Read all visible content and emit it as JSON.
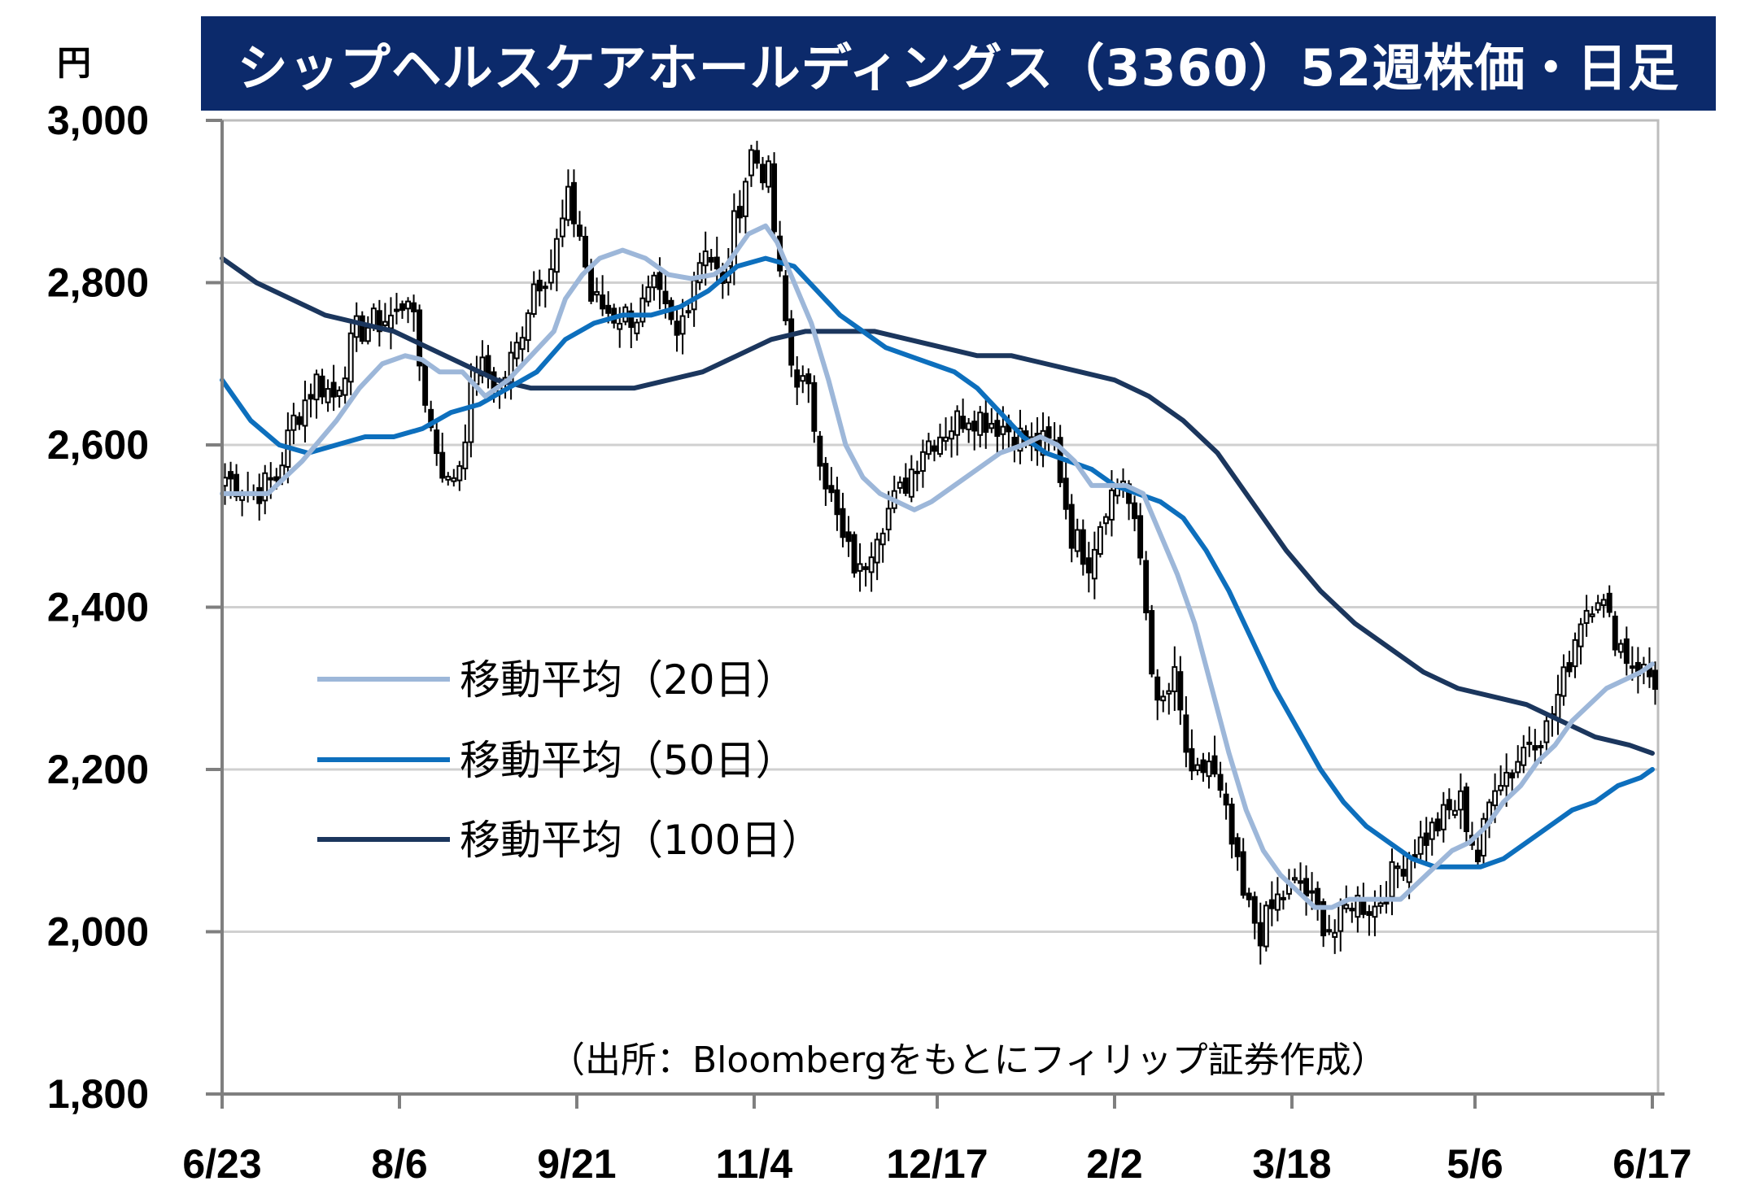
{
  "title": "シップヘルスケアホールディングス（3360）52週株価・日足",
  "unit": "円",
  "source": "（出所：Bloombergをもとにフィリップ証券作成）",
  "colors": {
    "title_bg": "#0c2a6b",
    "ma20": "#9db7d9",
    "ma50": "#0d6fbd",
    "ma100": "#1b365d",
    "candle": "#000000",
    "grid": "#d0d0d0"
  },
  "chart_data": {
    "type": "candlestick",
    "title": "シップヘルスケアホールディングス（3360）52週株価・日足",
    "ylabel": "円",
    "ylim": [
      1800,
      3000
    ],
    "yticks": [
      1800,
      2000,
      2200,
      2400,
      2600,
      2800,
      3000
    ],
    "ytick_labels": [
      "1,800",
      "2,000",
      "2,200",
      "2,400",
      "2,600",
      "2,800",
      "3,000"
    ],
    "xlim": [
      0,
      251
    ],
    "xticks": [
      {
        "label": "6/23",
        "x": 0
      },
      {
        "label": "8/6",
        "x": 31
      },
      {
        "label": "9/21",
        "x": 62
      },
      {
        "label": "11/4",
        "x": 93
      },
      {
        "label": "12/17",
        "x": 125
      },
      {
        "label": "2/2",
        "x": 156
      },
      {
        "label": "3/18",
        "x": 187
      },
      {
        "label": "5/6",
        "x": 219
      },
      {
        "label": "6/17",
        "x": 250
      }
    ],
    "legend": [
      "移動平均（20日）",
      "移動平均（50日）",
      "移動平均（100日）"
    ],
    "close_anchors": [
      [
        0,
        2560
      ],
      [
        5,
        2540
      ],
      [
        9,
        2560
      ],
      [
        12,
        2630
      ],
      [
        16,
        2680
      ],
      [
        19,
        2660
      ],
      [
        23,
        2740
      ],
      [
        26,
        2750
      ],
      [
        30,
        2760
      ],
      [
        32,
        2790
      ],
      [
        34,
        2700
      ],
      [
        36,
        2620
      ],
      [
        39,
        2550
      ],
      [
        41,
        2580
      ],
      [
        44,
        2700
      ],
      [
        48,
        2670
      ],
      [
        51,
        2720
      ],
      [
        54,
        2800
      ],
      [
        57,
        2820
      ],
      [
        60,
        2900
      ],
      [
        62,
        2860
      ],
      [
        64,
        2780
      ],
      [
        68,
        2760
      ],
      [
        72,
        2760
      ],
      [
        75,
        2790
      ],
      [
        79,
        2730
      ],
      [
        82,
        2810
      ],
      [
        84,
        2850
      ],
      [
        87,
        2790
      ],
      [
        89,
        2870
      ],
      [
        92,
        2960
      ],
      [
        95,
        2930
      ],
      [
        97,
        2800
      ],
      [
        99,
        2700
      ],
      [
        102,
        2660
      ],
      [
        105,
        2560
      ],
      [
        108,
        2480
      ],
      [
        111,
        2440
      ],
      [
        114,
        2500
      ],
      [
        118,
        2540
      ],
      [
        122,
        2600
      ],
      [
        126,
        2620
      ],
      [
        130,
        2640
      ],
      [
        134,
        2630
      ],
      [
        137,
        2620
      ],
      [
        141,
        2600
      ],
      [
        145,
        2600
      ],
      [
        148,
        2490
      ],
      [
        151,
        2460
      ],
      [
        154,
        2530
      ],
      [
        157,
        2560
      ],
      [
        160,
        2460
      ],
      [
        163,
        2270
      ],
      [
        166,
        2310
      ],
      [
        169,
        2180
      ],
      [
        172,
        2210
      ],
      [
        175,
        2140
      ],
      [
        178,
        2040
      ],
      [
        181,
        2000
      ],
      [
        184,
        2040
      ],
      [
        188,
        2060
      ],
      [
        191,
        2020
      ],
      [
        194,
        2000
      ],
      [
        197,
        2040
      ],
      [
        201,
        2030
      ],
      [
        205,
        2080
      ],
      [
        209,
        2110
      ],
      [
        213,
        2140
      ],
      [
        216,
        2160
      ],
      [
        219,
        2090
      ],
      [
        222,
        2190
      ],
      [
        225,
        2200
      ],
      [
        228,
        2240
      ],
      [
        231,
        2250
      ],
      [
        234,
        2310
      ],
      [
        237,
        2390
      ],
      [
        240,
        2420
      ],
      [
        242,
        2380
      ],
      [
        245,
        2340
      ],
      [
        248,
        2320
      ],
      [
        250,
        2310
      ]
    ],
    "ma20": [
      [
        0,
        2540
      ],
      [
        8,
        2540
      ],
      [
        14,
        2580
      ],
      [
        20,
        2630
      ],
      [
        24,
        2670
      ],
      [
        28,
        2700
      ],
      [
        32,
        2710
      ],
      [
        35,
        2705
      ],
      [
        38,
        2690
      ],
      [
        42,
        2690
      ],
      [
        46,
        2660
      ],
      [
        50,
        2680
      ],
      [
        54,
        2710
      ],
      [
        58,
        2740
      ],
      [
        60,
        2780
      ],
      [
        63,
        2810
      ],
      [
        66,
        2830
      ],
      [
        70,
        2840
      ],
      [
        74,
        2830
      ],
      [
        78,
        2810
      ],
      [
        82,
        2805
      ],
      [
        86,
        2810
      ],
      [
        88,
        2820
      ],
      [
        92,
        2860
      ],
      [
        95,
        2870
      ],
      [
        97,
        2850
      ],
      [
        100,
        2800
      ],
      [
        103,
        2750
      ],
      [
        106,
        2680
      ],
      [
        109,
        2600
      ],
      [
        112,
        2560
      ],
      [
        115,
        2540
      ],
      [
        118,
        2530
      ],
      [
        121,
        2520
      ],
      [
        124,
        2530
      ],
      [
        128,
        2550
      ],
      [
        132,
        2570
      ],
      [
        136,
        2590
      ],
      [
        140,
        2600
      ],
      [
        143,
        2610
      ],
      [
        146,
        2600
      ],
      [
        149,
        2580
      ],
      [
        152,
        2550
      ],
      [
        155,
        2550
      ],
      [
        158,
        2550
      ],
      [
        161,
        2540
      ],
      [
        164,
        2490
      ],
      [
        167,
        2440
      ],
      [
        170,
        2380
      ],
      [
        173,
        2300
      ],
      [
        176,
        2220
      ],
      [
        179,
        2150
      ],
      [
        182,
        2100
      ],
      [
        185,
        2070
      ],
      [
        188,
        2050
      ],
      [
        191,
        2030
      ],
      [
        194,
        2030
      ],
      [
        197,
        2040
      ],
      [
        200,
        2040
      ],
      [
        203,
        2040
      ],
      [
        206,
        2040
      ],
      [
        209,
        2060
      ],
      [
        212,
        2080
      ],
      [
        215,
        2100
      ],
      [
        218,
        2110
      ],
      [
        221,
        2130
      ],
      [
        224,
        2160
      ],
      [
        227,
        2180
      ],
      [
        230,
        2210
      ],
      [
        233,
        2230
      ],
      [
        236,
        2260
      ],
      [
        239,
        2280
      ],
      [
        242,
        2300
      ],
      [
        245,
        2310
      ],
      [
        248,
        2320
      ],
      [
        250,
        2330
      ]
    ],
    "ma50": [
      [
        0,
        2680
      ],
      [
        5,
        2630
      ],
      [
        10,
        2600
      ],
      [
        15,
        2590
      ],
      [
        20,
        2600
      ],
      [
        25,
        2610
      ],
      [
        30,
        2610
      ],
      [
        35,
        2620
      ],
      [
        40,
        2640
      ],
      [
        45,
        2650
      ],
      [
        50,
        2670
      ],
      [
        55,
        2690
      ],
      [
        60,
        2730
      ],
      [
        65,
        2750
      ],
      [
        70,
        2760
      ],
      [
        75,
        2760
      ],
      [
        80,
        2770
      ],
      [
        85,
        2790
      ],
      [
        90,
        2820
      ],
      [
        95,
        2830
      ],
      [
        100,
        2820
      ],
      [
        104,
        2790
      ],
      [
        108,
        2760
      ],
      [
        112,
        2740
      ],
      [
        116,
        2720
      ],
      [
        120,
        2710
      ],
      [
        124,
        2700
      ],
      [
        128,
        2690
      ],
      [
        132,
        2670
      ],
      [
        136,
        2640
      ],
      [
        140,
        2610
      ],
      [
        144,
        2590
      ],
      [
        148,
        2580
      ],
      [
        152,
        2570
      ],
      [
        156,
        2550
      ],
      [
        160,
        2540
      ],
      [
        164,
        2530
      ],
      [
        168,
        2510
      ],
      [
        172,
        2470
      ],
      [
        176,
        2420
      ],
      [
        180,
        2360
      ],
      [
        184,
        2300
      ],
      [
        188,
        2250
      ],
      [
        192,
        2200
      ],
      [
        196,
        2160
      ],
      [
        200,
        2130
      ],
      [
        204,
        2110
      ],
      [
        208,
        2090
      ],
      [
        212,
        2080
      ],
      [
        216,
        2080
      ],
      [
        220,
        2080
      ],
      [
        224,
        2090
      ],
      [
        228,
        2110
      ],
      [
        232,
        2130
      ],
      [
        236,
        2150
      ],
      [
        240,
        2160
      ],
      [
        244,
        2180
      ],
      [
        248,
        2190
      ],
      [
        250,
        2200
      ]
    ],
    "ma100": [
      [
        0,
        2830
      ],
      [
        6,
        2800
      ],
      [
        12,
        2780
      ],
      [
        18,
        2760
      ],
      [
        24,
        2750
      ],
      [
        30,
        2740
      ],
      [
        36,
        2720
      ],
      [
        42,
        2700
      ],
      [
        48,
        2680
      ],
      [
        54,
        2670
      ],
      [
        60,
        2670
      ],
      [
        66,
        2670
      ],
      [
        72,
        2670
      ],
      [
        78,
        2680
      ],
      [
        84,
        2690
      ],
      [
        90,
        2710
      ],
      [
        96,
        2730
      ],
      [
        102,
        2740
      ],
      [
        108,
        2740
      ],
      [
        114,
        2740
      ],
      [
        120,
        2730
      ],
      [
        126,
        2720
      ],
      [
        132,
        2710
      ],
      [
        138,
        2710
      ],
      [
        144,
        2700
      ],
      [
        150,
        2690
      ],
      [
        156,
        2680
      ],
      [
        162,
        2660
      ],
      [
        168,
        2630
      ],
      [
        174,
        2590
      ],
      [
        180,
        2530
      ],
      [
        186,
        2470
      ],
      [
        192,
        2420
      ],
      [
        198,
        2380
      ],
      [
        204,
        2350
      ],
      [
        210,
        2320
      ],
      [
        216,
        2300
      ],
      [
        222,
        2290
      ],
      [
        228,
        2280
      ],
      [
        234,
        2260
      ],
      [
        240,
        2240
      ],
      [
        246,
        2230
      ],
      [
        250,
        2220
      ]
    ]
  }
}
